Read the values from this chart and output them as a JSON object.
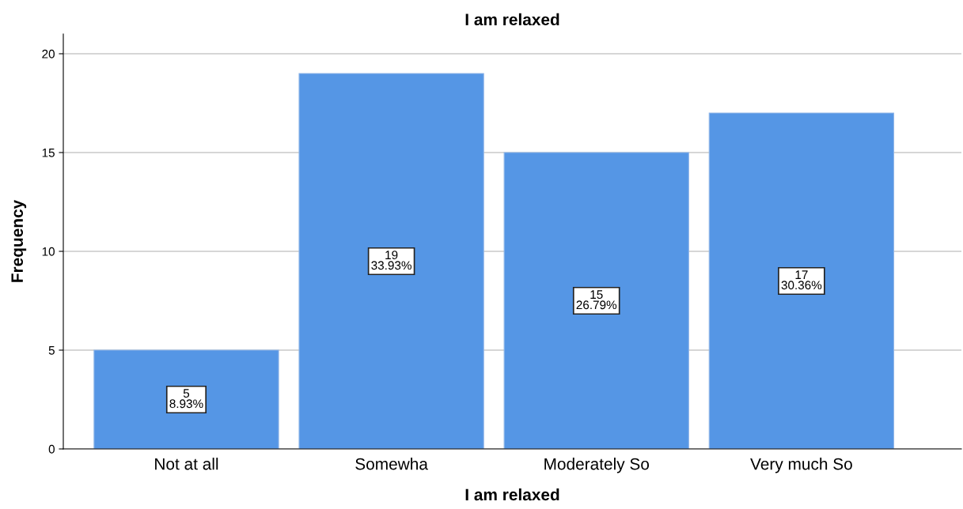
{
  "chart_data": {
    "type": "bar",
    "title": "I am relaxed",
    "xlabel": "I am relaxed",
    "ylabel": "Frequency",
    "categories": [
      "Not at all",
      "Somewha",
      "Moderately So",
      "Very much So"
    ],
    "values": [
      5,
      19,
      15,
      17
    ],
    "color": "#5596e5",
    "value_labels": [
      "5\n8.93%",
      "19\n33.93%",
      "15\n26.79%",
      "17\n30.36%"
    ],
    "ylim": [
      0,
      21
    ],
    "yticks": [
      0,
      5,
      10,
      15,
      20
    ],
    "grid": "y"
  }
}
